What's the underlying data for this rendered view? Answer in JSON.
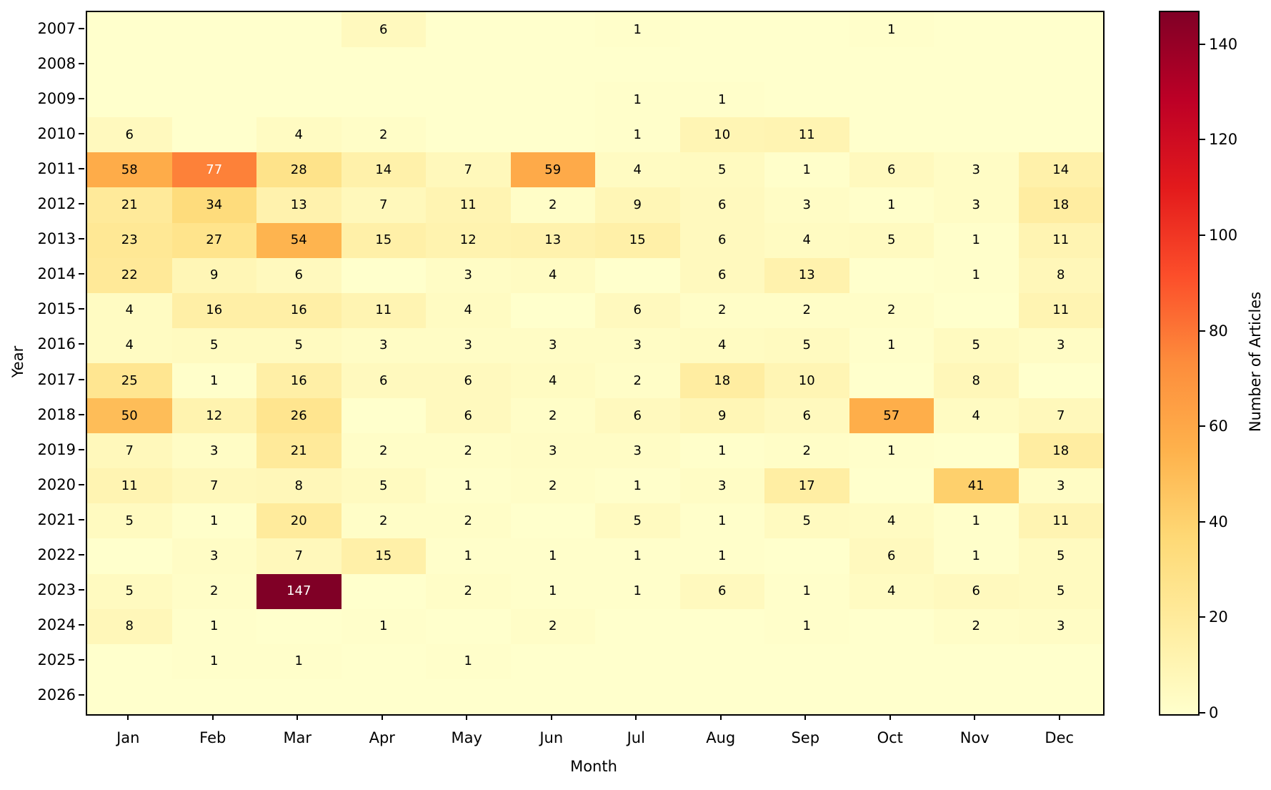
{
  "chart_data": {
    "type": "heatmap",
    "xlabel": "Month",
    "ylabel": "Year",
    "colorbar_label": "Number of Articles",
    "colormap": "YlOrRd",
    "x_categories": [
      "Jan",
      "Feb",
      "Mar",
      "Apr",
      "May",
      "Jun",
      "Jul",
      "Aug",
      "Sep",
      "Oct",
      "Nov",
      "Dec"
    ],
    "y_categories": [
      "2007",
      "2008",
      "2009",
      "2010",
      "2011",
      "2012",
      "2013",
      "2014",
      "2015",
      "2016",
      "2017",
      "2018",
      "2019",
      "2020",
      "2021",
      "2022",
      "2023",
      "2024",
      "2025",
      "2026"
    ],
    "values": [
      [
        null,
        null,
        null,
        6,
        null,
        null,
        1,
        null,
        null,
        1,
        null,
        null
      ],
      [
        null,
        null,
        null,
        null,
        null,
        null,
        null,
        null,
        null,
        null,
        null,
        null
      ],
      [
        null,
        null,
        null,
        null,
        null,
        null,
        1,
        1,
        null,
        null,
        null,
        null
      ],
      [
        6,
        null,
        4,
        2,
        null,
        null,
        1,
        10,
        11,
        null,
        null,
        null
      ],
      [
        58,
        77,
        28,
        14,
        7,
        59,
        4,
        5,
        1,
        6,
        3,
        14
      ],
      [
        21,
        34,
        13,
        7,
        11,
        2,
        9,
        6,
        3,
        1,
        3,
        18
      ],
      [
        23,
        27,
        54,
        15,
        12,
        13,
        15,
        6,
        4,
        5,
        1,
        11
      ],
      [
        22,
        9,
        6,
        null,
        3,
        4,
        null,
        6,
        13,
        null,
        1,
        8
      ],
      [
        4,
        16,
        16,
        11,
        4,
        null,
        6,
        2,
        2,
        2,
        null,
        11
      ],
      [
        4,
        5,
        5,
        3,
        3,
        3,
        3,
        4,
        5,
        1,
        5,
        3
      ],
      [
        25,
        1,
        16,
        6,
        6,
        4,
        2,
        18,
        10,
        null,
        8,
        null
      ],
      [
        50,
        12,
        26,
        null,
        6,
        2,
        6,
        9,
        6,
        57,
        4,
        7
      ],
      [
        7,
        3,
        21,
        2,
        2,
        3,
        3,
        1,
        2,
        1,
        null,
        18
      ],
      [
        11,
        7,
        8,
        5,
        1,
        2,
        1,
        3,
        17,
        null,
        41,
        3
      ],
      [
        5,
        1,
        20,
        2,
        2,
        null,
        5,
        1,
        5,
        4,
        1,
        11
      ],
      [
        null,
        3,
        7,
        15,
        1,
        1,
        1,
        1,
        null,
        6,
        1,
        5
      ],
      [
        5,
        2,
        147,
        null,
        2,
        1,
        1,
        6,
        1,
        4,
        6,
        5
      ],
      [
        8,
        1,
        null,
        1,
        null,
        2,
        null,
        null,
        1,
        null,
        2,
        3
      ],
      [
        null,
        1,
        1,
        null,
        1,
        null,
        null,
        null,
        null,
        null,
        null,
        null
      ],
      [
        null,
        null,
        null,
        null,
        null,
        null,
        null,
        null,
        null,
        null,
        null,
        null
      ]
    ],
    "vmin": 0,
    "vmax": 147,
    "colorbar_ticks": [
      0,
      20,
      40,
      60,
      80,
      100,
      120,
      140
    ],
    "colormap_stops": [
      {
        "pos": 0.0,
        "color": "#ffffcc"
      },
      {
        "pos": 0.125,
        "color": "#ffeda0"
      },
      {
        "pos": 0.25,
        "color": "#fed976"
      },
      {
        "pos": 0.375,
        "color": "#feb24c"
      },
      {
        "pos": 0.5,
        "color": "#fd8d3c"
      },
      {
        "pos": 0.625,
        "color": "#fc4e2a"
      },
      {
        "pos": 0.75,
        "color": "#e31a1c"
      },
      {
        "pos": 0.875,
        "color": "#bd0026"
      },
      {
        "pos": 1.0,
        "color": "#800026"
      }
    ],
    "annotation_colors": {
      "on_dark": "#ffffff",
      "on_light": "#000000"
    }
  }
}
